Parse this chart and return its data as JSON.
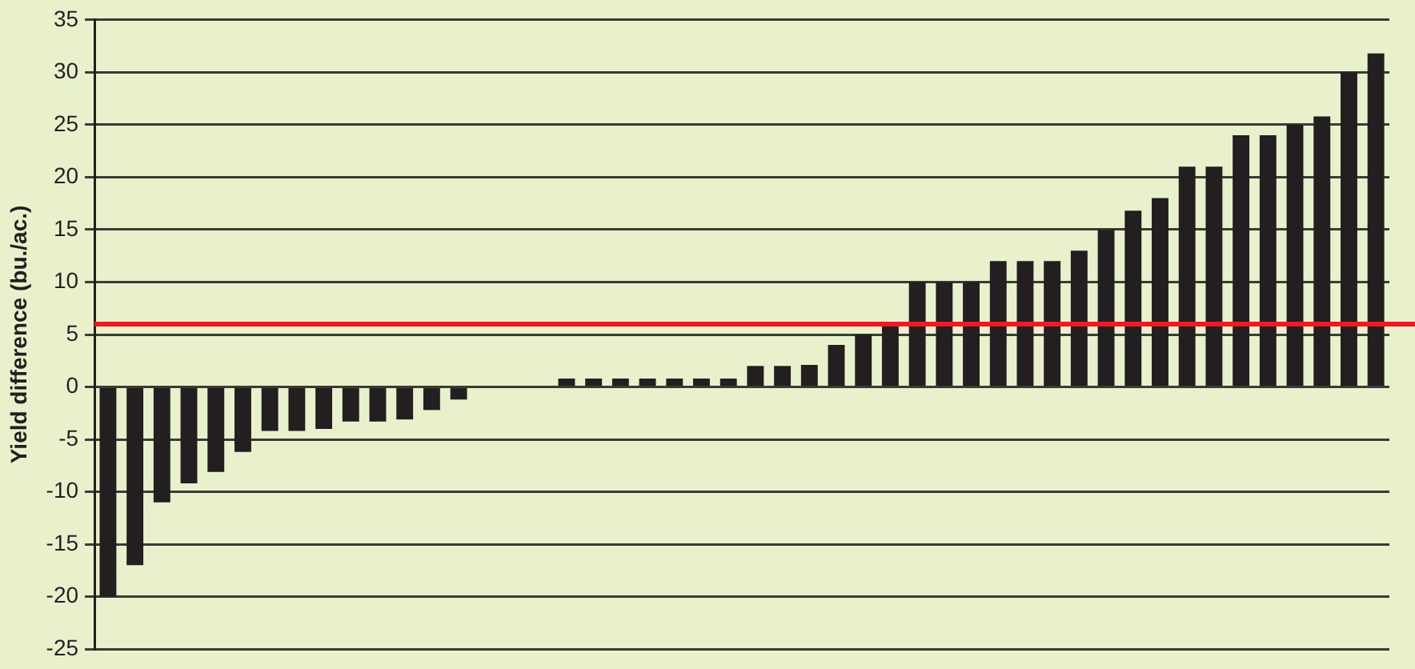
{
  "chart_data": {
    "type": "bar",
    "ylabel": "Yield difference (bu./ac.)",
    "categories": [
      null,
      null,
      null,
      null,
      null,
      null,
      null,
      null,
      null,
      null,
      null,
      null,
      null,
      null,
      null,
      null,
      null,
      null,
      null,
      null,
      null,
      null,
      null,
      null,
      null,
      null,
      null,
      null,
      null,
      null,
      null,
      null,
      null,
      null,
      null,
      null,
      null,
      null,
      null,
      null,
      null,
      null,
      null,
      null,
      null,
      null,
      null,
      null
    ],
    "values": [
      -20,
      -17,
      -11,
      -9.2,
      -8.1,
      -6.2,
      -4.2,
      -4.2,
      -4,
      -3.3,
      -3.3,
      -3.1,
      -2.2,
      -1.2,
      null,
      null,
      null,
      0.8,
      0.8,
      0.8,
      0.8,
      0.8,
      0.8,
      0.8,
      2,
      2,
      2.1,
      4,
      5,
      6,
      10,
      10,
      10,
      12,
      12,
      12,
      13,
      15,
      16.8,
      18,
      21,
      21,
      24,
      24,
      25,
      25.8,
      30,
      31.8
    ],
    "color": "#231f20",
    "ylim": [
      -25,
      35
    ],
    "yticks": [
      -25,
      -20,
      -15,
      -10,
      -5,
      0,
      5,
      10,
      15,
      20,
      25,
      30,
      35
    ],
    "grid": "y",
    "ref_lines": [
      {
        "axis": "y",
        "value": 6,
        "color": "#ed1c24"
      }
    ]
  }
}
